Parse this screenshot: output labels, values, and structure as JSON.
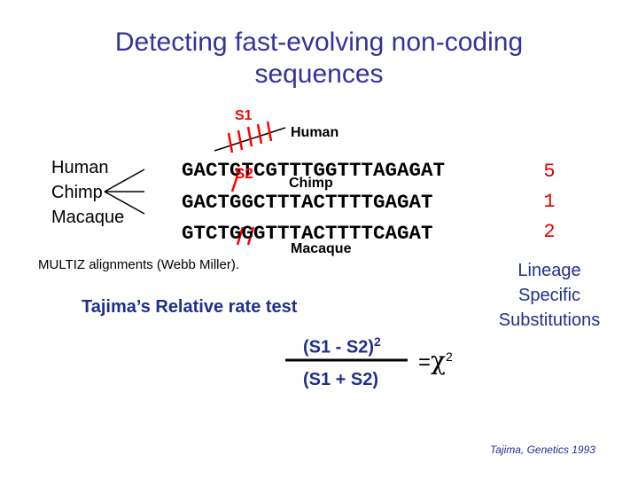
{
  "title": {
    "line1": "Detecting fast-evolving non-coding",
    "line2": "sequences"
  },
  "species": {
    "human": "Human",
    "chimp": "Chimp",
    "macaque": "Macaque"
  },
  "sequences": {
    "human": "GACTGTCGTTTGGTTTAGAGAT",
    "chimp": "GACTGGCTTTACTTTTGAGAT",
    "macaque": "GTCTGGGTTTACTTTTCAGAT"
  },
  "branch_labels": {
    "s1": "S1",
    "s2": "S2",
    "human": "Human",
    "chimp": "Chimp",
    "macaque": "Macaque"
  },
  "counts": [
    "5",
    "1",
    "2"
  ],
  "lineage_label": {
    "line1": "Lineage",
    "line2": "Specific",
    "line3": "Substitutions"
  },
  "alignment_note": "MULTIZ alignments (Webb Miller).",
  "test_title": "Tajima’s Relative rate test",
  "formula": {
    "numerator": "(S1 - S2)",
    "exponent": "2",
    "denominator": "(S1 + S2)",
    "equals": "=",
    "chi": "χ",
    "chi_exponent": "2"
  },
  "citation": "Tajima, Genetics 1993",
  "colors": {
    "title": "#33339a",
    "accent": "#ff0000",
    "text": "#000000"
  }
}
